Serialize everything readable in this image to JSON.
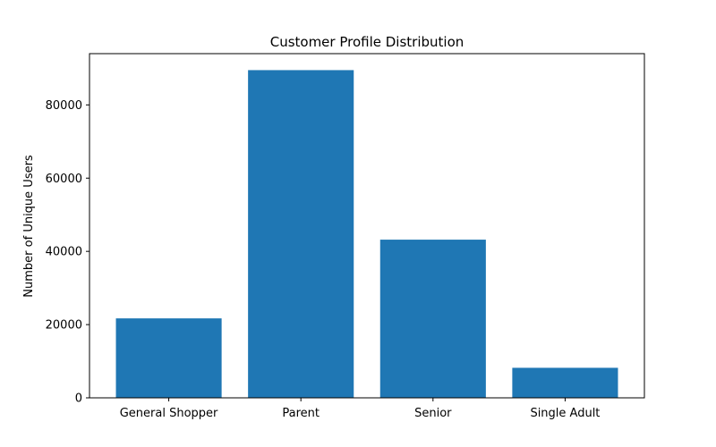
{
  "chart_data": {
    "type": "bar",
    "title": "Customer Profile Distribution",
    "xlabel": "",
    "ylabel": "Number of Unique Users",
    "categories": [
      "General Shopper",
      "Parent",
      "Senior",
      "Single Adult"
    ],
    "values": [
      21700,
      89500,
      43200,
      8200
    ],
    "ylim": [
      0,
      94000
    ],
    "yticks": [
      0,
      20000,
      40000,
      60000,
      80000
    ],
    "ytick_labels": [
      "0",
      "20000",
      "40000",
      "60000",
      "80000"
    ],
    "bar_color": "#1f77b4",
    "grid": false,
    "legend": "none"
  }
}
